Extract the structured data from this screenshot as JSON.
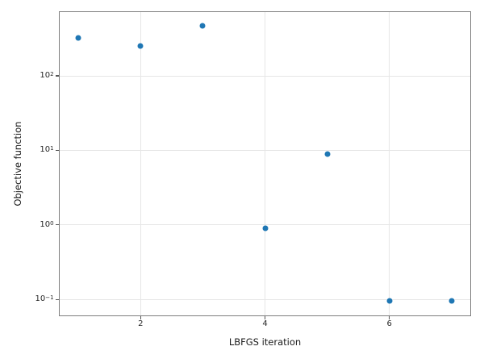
{
  "figure": {
    "background_color": "#ffffff",
    "marker_color": "#1f77b4",
    "grid_color": "#e6e6e6",
    "spine_color": "#7f7f7f",
    "tick_color": "#555555",
    "tick_label_color": "#262626"
  },
  "chart_data": {
    "type": "scatter",
    "title": "",
    "xlabel": "LBFGS iteration",
    "ylabel": "Objective function",
    "x": [
      1,
      2,
      3,
      4,
      5,
      6,
      7
    ],
    "y": [
      320,
      250,
      470,
      0.9,
      9,
      0.095,
      0.095
    ],
    "yscale": "log",
    "xlim": [
      0.7,
      7.3
    ],
    "ylim": [
      0.061,
      716
    ],
    "ylim_log10": [
      -1.213,
      2.855
    ],
    "grid": true,
    "legend": null,
    "x_ticks": [
      {
        "value": 2,
        "label": "2"
      },
      {
        "value": 4,
        "label": "4"
      },
      {
        "value": 6,
        "label": "6"
      }
    ],
    "y_ticks": [
      {
        "value": 100,
        "base": "10",
        "exp": "2"
      },
      {
        "value": 10,
        "base": "10",
        "exp": "1"
      },
      {
        "value": 1,
        "base": "10",
        "exp": "0"
      },
      {
        "value": 0.1,
        "base": "10",
        "exp": "−1"
      }
    ]
  }
}
